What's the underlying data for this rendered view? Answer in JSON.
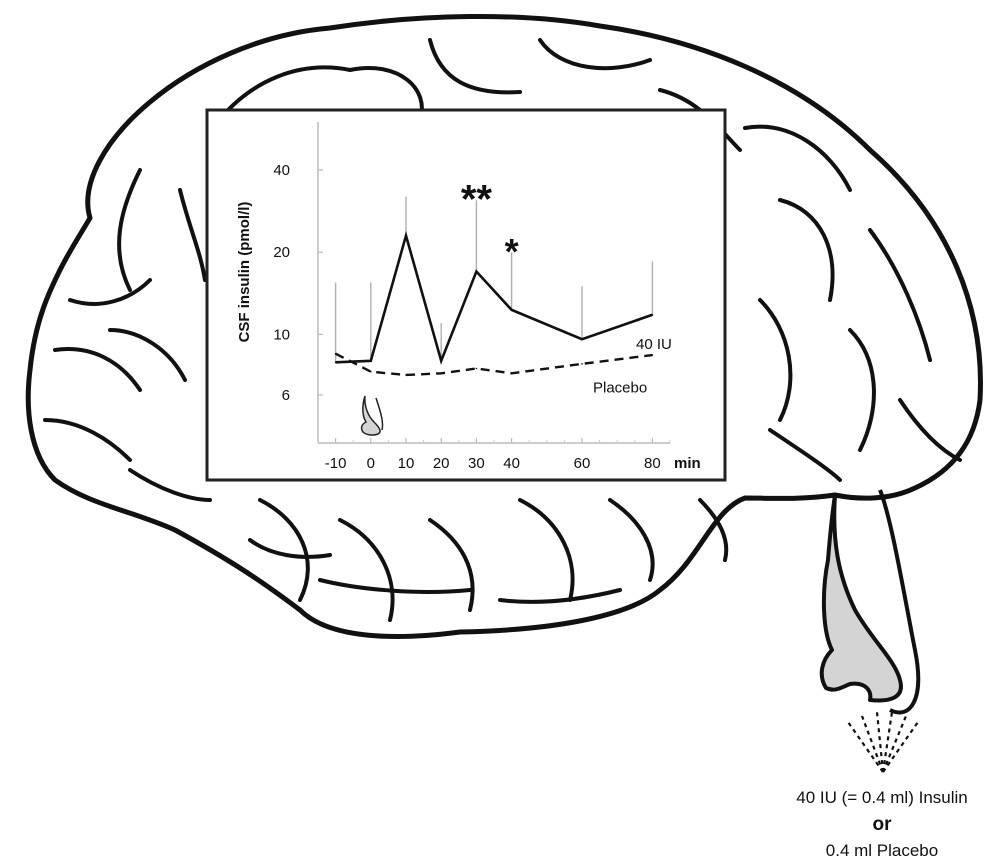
{
  "chart_data": {
    "type": "line",
    "xlabel": "min",
    "ylabel": "CSF insulin (pmol/l)",
    "x_ticks": [
      -10,
      0,
      10,
      20,
      30,
      40,
      60,
      80
    ],
    "y_ticks": [
      6,
      10,
      20,
      40
    ],
    "y_scale": "log",
    "ylim": [
      4,
      60
    ],
    "xlim": [
      -15,
      85
    ],
    "grid": false,
    "series": [
      {
        "name": "40 IU",
        "style": "solid",
        "x": [
          -10,
          0,
          10,
          20,
          30,
          40,
          60,
          80
        ],
        "y": [
          7.9,
          8.0,
          23.0,
          8.0,
          17.0,
          12.3,
          9.6,
          11.8
        ],
        "error_upper": [
          15.5,
          15.5,
          32.0,
          11.0,
          31.0,
          20.0,
          15.0,
          18.5
        ]
      },
      {
        "name": "Placebo",
        "style": "dashed",
        "x": [
          -10,
          0,
          10,
          20,
          30,
          40,
          60,
          80
        ],
        "y": [
          8.5,
          7.3,
          7.1,
          7.2,
          7.5,
          7.2,
          7.8,
          8.4
        ]
      }
    ],
    "annotations": [
      {
        "text": "**",
        "x": 30
      },
      {
        "text": "*",
        "x": 40
      }
    ]
  },
  "caption": {
    "line1": "40 IU (= 0.4 ml) Insulin",
    "line2": "or",
    "line3": "0.4 ml Placebo"
  },
  "colors": {
    "curve": "#111111",
    "error_bar": "#b0b0b0",
    "nose_fill": "#d4d4d4",
    "brain_outline": "#111111"
  },
  "icons": [
    "brain-illustration",
    "nose-icon",
    "spray-icon"
  ]
}
